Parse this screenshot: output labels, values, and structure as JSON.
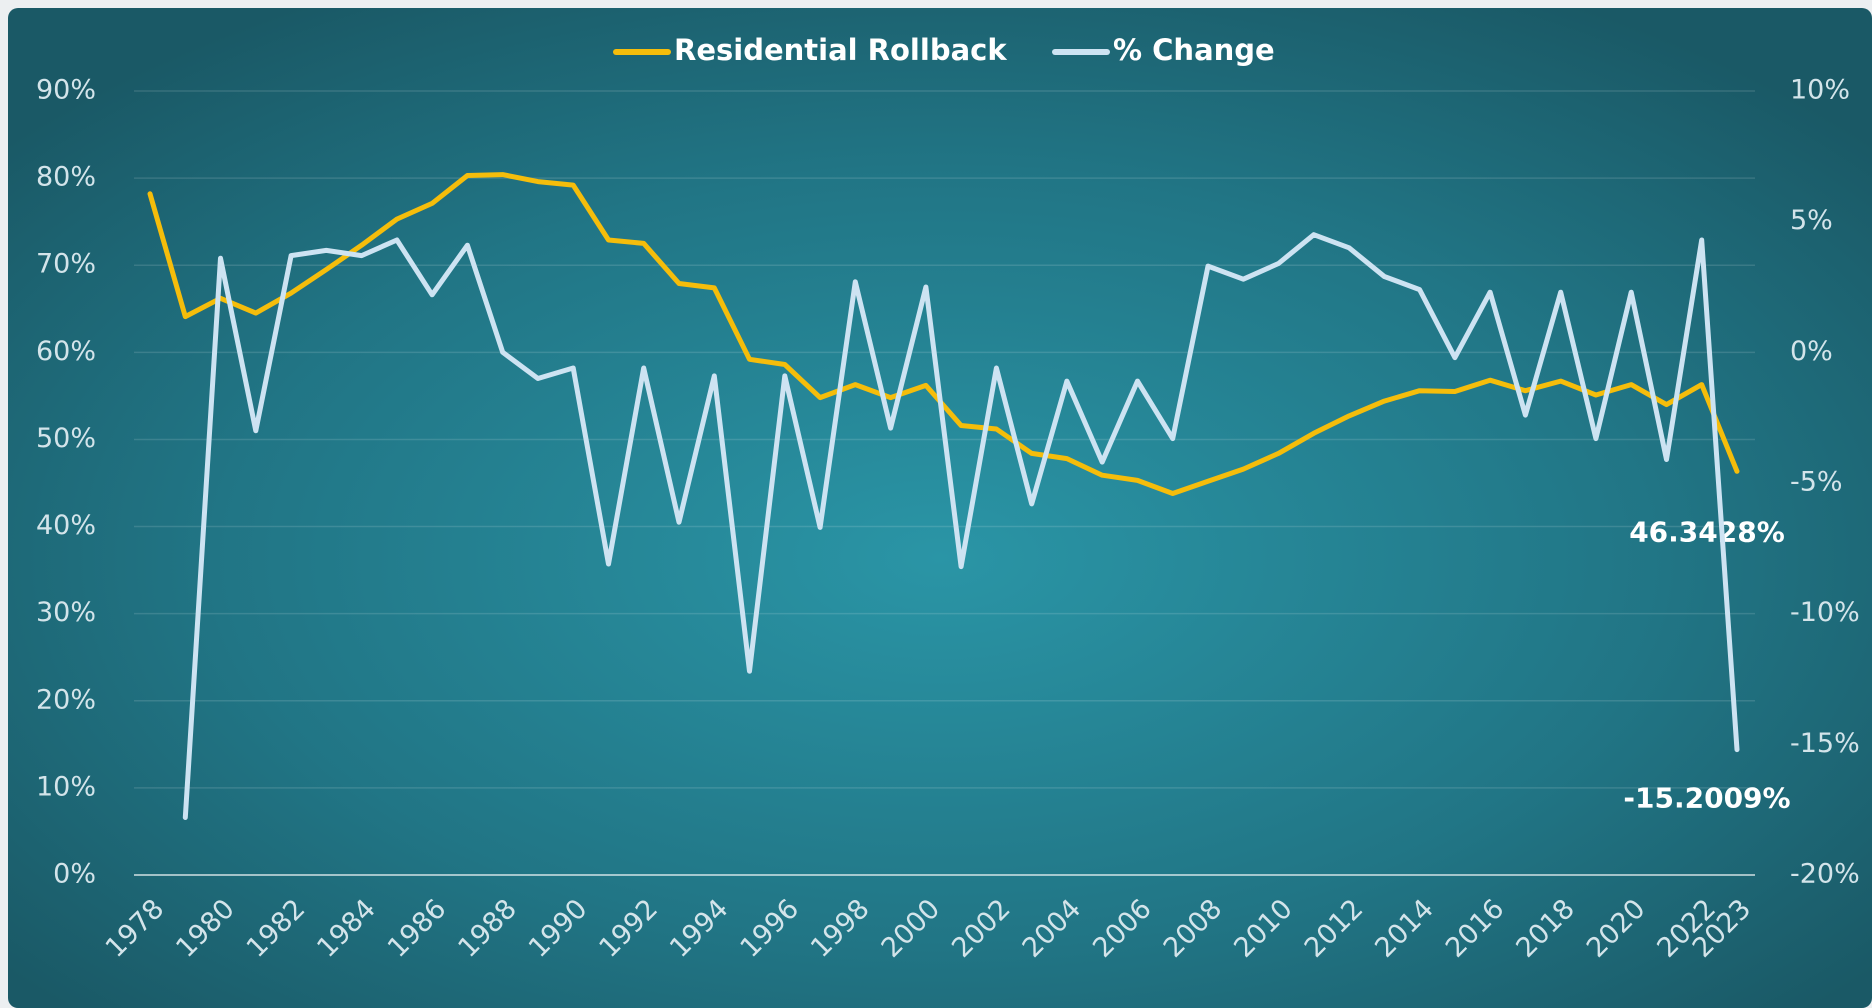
{
  "chart_data": {
    "type": "line",
    "x": [
      1978,
      1979,
      1980,
      1981,
      1982,
      1983,
      1984,
      1985,
      1986,
      1987,
      1988,
      1989,
      1990,
      1991,
      1992,
      1993,
      1994,
      1995,
      1996,
      1997,
      1998,
      1999,
      2000,
      2001,
      2002,
      2003,
      2004,
      2005,
      2006,
      2007,
      2008,
      2009,
      2010,
      2011,
      2012,
      2013,
      2014,
      2015,
      2016,
      2017,
      2018,
      2019,
      2020,
      2021,
      2022,
      2023
    ],
    "xlim": [
      1978,
      2023
    ],
    "xticks": [
      1978,
      1980,
      1982,
      1984,
      1986,
      1988,
      1990,
      1992,
      1994,
      1996,
      1998,
      2000,
      2002,
      2004,
      2006,
      2008,
      2010,
      2012,
      2014,
      2016,
      2018,
      2020,
      2022,
      2023
    ],
    "ylim": [
      0,
      90
    ],
    "yticks": [
      {
        "value": 0,
        "label": "0%"
      },
      {
        "value": 10,
        "label": "10%"
      },
      {
        "value": 20,
        "label": "20%"
      },
      {
        "value": 30,
        "label": "30%"
      },
      {
        "value": 40,
        "label": "40%"
      },
      {
        "value": 50,
        "label": "50%"
      },
      {
        "value": 60,
        "label": "60%"
      },
      {
        "value": 70,
        "label": "70%"
      },
      {
        "value": 80,
        "label": "80%"
      },
      {
        "value": 90,
        "label": "90%"
      }
    ],
    "y2lim": [
      -20,
      10
    ],
    "y2ticks": [
      {
        "value": -20,
        "label": "-20%"
      },
      {
        "value": -15,
        "label": "-15%"
      },
      {
        "value": -10,
        "label": "-10%"
      },
      {
        "value": -5,
        "label": "-5%"
      },
      {
        "value": 0,
        "label": "0%"
      },
      {
        "value": 5,
        "label": "5%"
      },
      {
        "value": 10,
        "label": "10%"
      }
    ],
    "grid": true,
    "legend": "top",
    "series": [
      {
        "name": "Residential Rollback",
        "color": "#f5bd0b",
        "values": [
          78.2,
          64.1,
          66.2,
          64.5,
          66.8,
          69.5,
          72.3,
          75.3,
          77.1,
          80.3,
          80.4,
          79.6,
          79.2,
          72.9,
          72.5,
          67.9,
          67.4,
          59.2,
          58.6,
          54.8,
          56.3,
          54.8,
          56.2,
          51.6,
          51.2,
          48.4,
          47.8,
          45.9,
          45.3,
          43.8,
          45.2,
          46.6,
          48.4,
          50.7,
          52.7,
          54.4,
          55.6,
          55.5,
          56.8,
          55.6,
          56.7,
          55.1,
          56.3,
          54.0,
          56.3,
          46.3428
        ],
        "value_labels": [
          null,
          null,
          null,
          null,
          null,
          null,
          null,
          null,
          null,
          null,
          null,
          null,
          null,
          null,
          null,
          null,
          null,
          null,
          null,
          null,
          null,
          null,
          null,
          null,
          null,
          null,
          null,
          null,
          null,
          null,
          null,
          null,
          null,
          null,
          null,
          null,
          null,
          null,
          null,
          null,
          null,
          null,
          null,
          null,
          null,
          "46.3428%"
        ]
      },
      {
        "name": "% Change",
        "color": "#cde3f2",
        "axis": "y2",
        "values": [
          null,
          -17.8,
          3.6,
          -3.0,
          3.7,
          3.9,
          3.7,
          4.3,
          2.2,
          4.1,
          0.0,
          -1.0,
          -0.6,
          -8.1,
          -0.6,
          -6.5,
          -0.9,
          -12.2,
          -0.9,
          -6.7,
          2.7,
          -2.9,
          2.5,
          -8.2,
          -0.6,
          -5.8,
          -1.1,
          -4.2,
          -1.1,
          -3.3,
          3.3,
          2.8,
          3.4,
          4.5,
          4.0,
          2.9,
          2.4,
          -0.2,
          2.3,
          -2.4,
          2.3,
          -3.3,
          2.3,
          -4.1,
          4.3,
          -15.2009
        ],
        "value_labels": [
          null,
          null,
          null,
          null,
          null,
          null,
          null,
          null,
          null,
          null,
          null,
          null,
          null,
          null,
          null,
          null,
          null,
          null,
          null,
          null,
          null,
          null,
          null,
          null,
          null,
          null,
          null,
          null,
          null,
          null,
          null,
          null,
          null,
          null,
          null,
          null,
          null,
          null,
          null,
          null,
          null,
          null,
          null,
          null,
          null,
          "-15.2009%"
        ]
      }
    ]
  }
}
